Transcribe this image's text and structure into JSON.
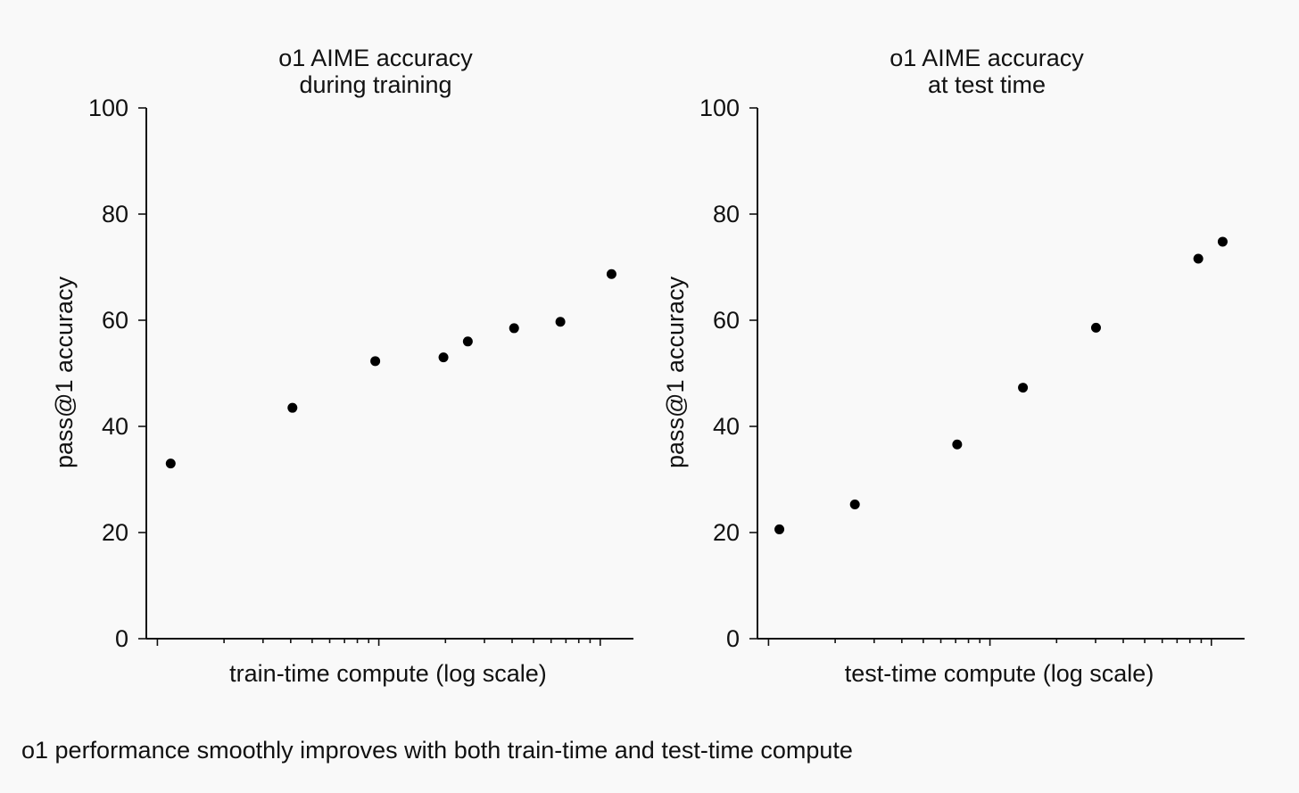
{
  "caption": "o1 performance smoothly improves with both train-time and test-time compute",
  "chart_data": [
    {
      "type": "scatter",
      "title": [
        "o1 AIME accuracy",
        "during training"
      ],
      "xlabel": "train-time compute (log scale)",
      "ylabel": "pass@1 accuracy",
      "xscale": "log",
      "xtick_labels": "none",
      "yticks": [
        0,
        20,
        40,
        60,
        80,
        100
      ],
      "ylim": [
        0,
        100
      ],
      "grid": false,
      "point_color": "#000000",
      "series": [
        {
          "x_rel": [
            0.05,
            0.3,
            0.47,
            0.61,
            0.66,
            0.755,
            0.85,
            0.955
          ],
          "y": [
            33,
            43.5,
            52.3,
            53,
            56,
            58.5,
            59.7,
            68.7
          ]
        }
      ]
    },
    {
      "type": "scatter",
      "title": [
        "o1 AIME accuracy",
        "at test time"
      ],
      "xlabel": "test-time compute (log scale)",
      "ylabel": "pass@1 accuracy",
      "xscale": "log",
      "xtick_labels": "none",
      "yticks": [
        0,
        20,
        40,
        60,
        80,
        100
      ],
      "ylim": [
        0,
        100
      ],
      "grid": false,
      "point_color": "#000000",
      "series": [
        {
          "x_rel": [
            0.045,
            0.2,
            0.41,
            0.545,
            0.695,
            0.905,
            0.955
          ],
          "y": [
            20.6,
            25.3,
            36.6,
            47.3,
            58.6,
            71.6,
            74.8
          ]
        }
      ]
    }
  ]
}
